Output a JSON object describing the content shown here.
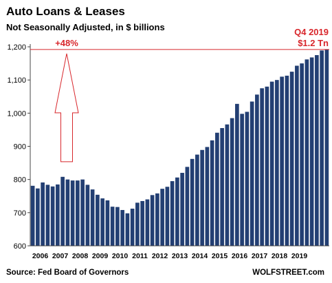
{
  "chart_data": {
    "type": "bar",
    "title": "Auto Loans & Leases",
    "subtitle": "Not Seasonally Adjusted, in $ billions",
    "ylim": [
      600,
      1200
    ],
    "yticks": [
      600,
      700,
      800,
      900,
      1000,
      1100,
      1200
    ],
    "ytick_labels": [
      "600",
      "700",
      "800",
      "900",
      "1,000",
      "1,100",
      "1,200"
    ],
    "xtick_labels": [
      "2006",
      "2007",
      "2008",
      "2009",
      "2010",
      "2011",
      "2012",
      "2013",
      "2014",
      "2015",
      "2016",
      "2017",
      "2018",
      "2019"
    ],
    "bar_color": "#233f73",
    "grid": false,
    "values": [
      781,
      773,
      791,
      784,
      779,
      785,
      808,
      800,
      797,
      797,
      800,
      784,
      770,
      754,
      743,
      737,
      718,
      717,
      708,
      698,
      712,
      730,
      735,
      740,
      753,
      758,
      772,
      778,
      795,
      806,
      820,
      838,
      862,
      875,
      889,
      898,
      918,
      941,
      955,
      966,
      985,
      1028,
      998,
      1004,
      1035,
      1056,
      1075,
      1080,
      1095,
      1100,
      1110,
      1113,
      1125,
      1143,
      1150,
      1162,
      1168,
      1175,
      1189,
      1192
    ],
    "reference_line": {
      "value": 1192,
      "color": "#d8262b"
    },
    "annotations": {
      "increase": "+48%",
      "period": "Q4 2019",
      "value": "$1.2 Tn",
      "arrow_from": 808,
      "arrow_to": 1192
    }
  },
  "footer": {
    "source": "Source: Fed Board of Governors",
    "brand": "WOLFSTREET.com"
  }
}
